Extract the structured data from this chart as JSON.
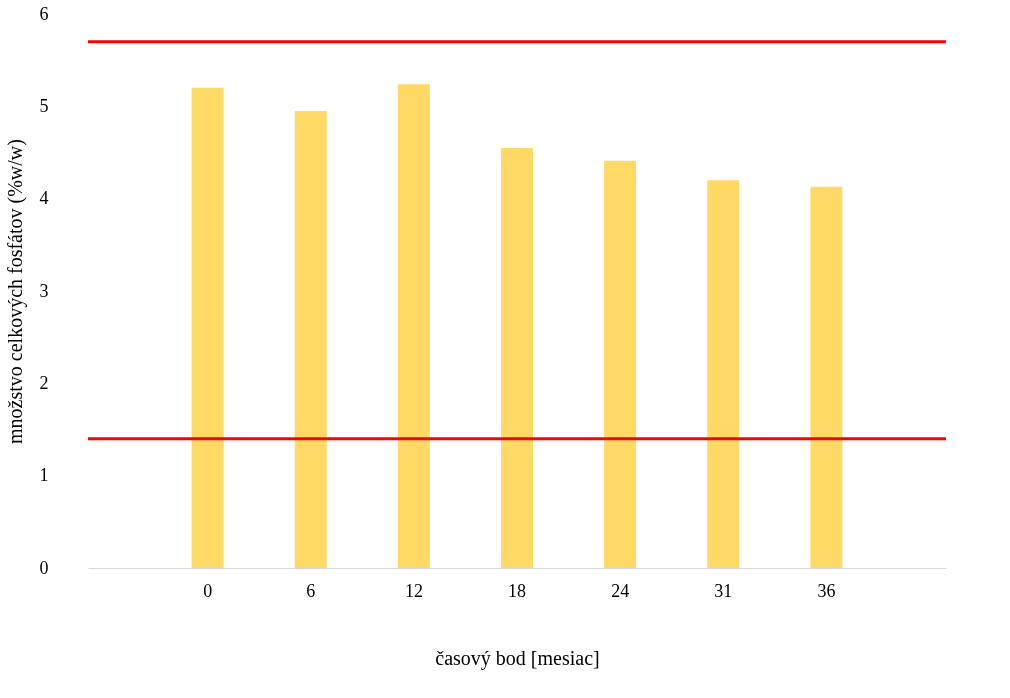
{
  "chart_data": {
    "type": "bar",
    "xlabel": "časový bod [mesiac]",
    "ylabel": "množstvo celkových fosfátov (%w/w)",
    "categories": [
      "0",
      "6",
      "12",
      "18",
      "24",
      "31",
      "36"
    ],
    "values": [
      5.2,
      4.95,
      5.24,
      4.55,
      4.41,
      4.2,
      4.13
    ],
    "color": "#ffd966",
    "ylim": [
      0,
      6
    ],
    "yticks": [
      0,
      1,
      2,
      3,
      4,
      5,
      6
    ],
    "grid": false,
    "ref_lines": [
      {
        "axis": "y",
        "value": 5.7,
        "color": "#ff0000"
      },
      {
        "axis": "y",
        "value": 1.4,
        "color": "#ff0000"
      }
    ]
  }
}
